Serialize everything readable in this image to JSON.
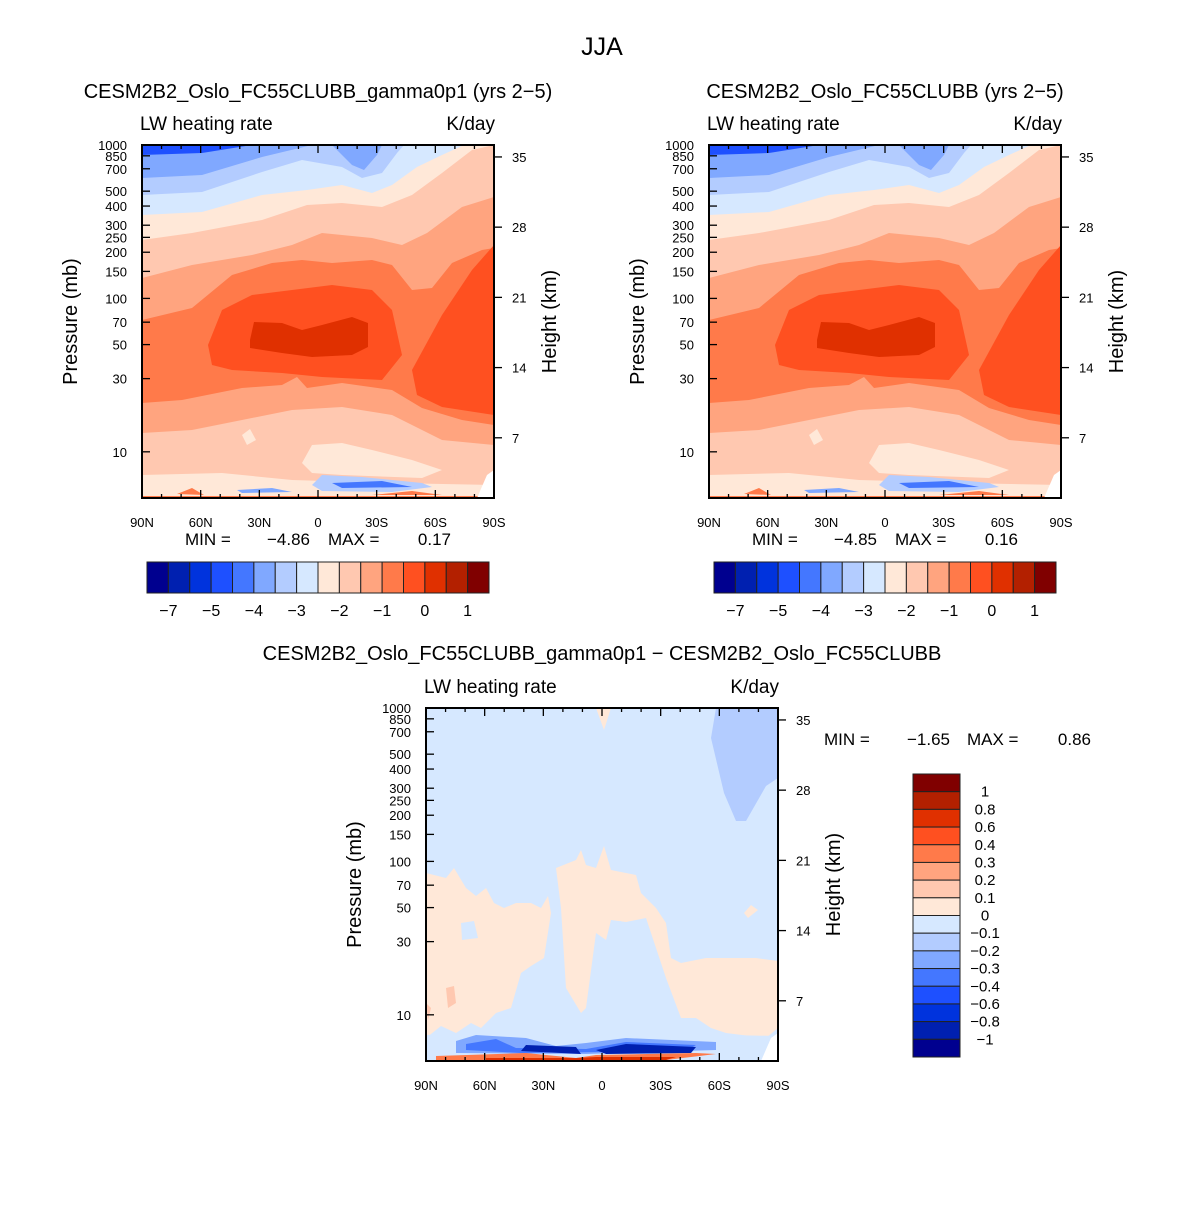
{
  "figure_title": "JJA",
  "chart_data": [
    {
      "type": "heatmap",
      "subtype": "filled-contour",
      "title": "CESM2B2_Oslo_FC55CLUBB_gamma0p1 (yrs 2−5)",
      "left_string": "LW heating rate",
      "right_string": "K/day",
      "ylabel": "Pressure (mb)",
      "y2label": "Height (km)",
      "xticks": [
        "90N",
        "60N",
        "30N",
        "0",
        "30S",
        "60S",
        "90S"
      ],
      "yticks": [
        "10",
        "30",
        "50",
        "70",
        "100",
        "150",
        "200",
        "250",
        "300",
        "400",
        "500",
        "700",
        "850",
        "1000"
      ],
      "y2ticks": [
        "35",
        "28",
        "21",
        "14",
        "7"
      ],
      "ylim": [
        1000,
        5
      ],
      "min_label": "MIN =",
      "min": "−4.86",
      "max_label": "MAX =",
      "max": "0.17",
      "colorbar_labels": [
        "−7",
        "−5",
        "−4",
        "−3",
        "−2",
        "−1",
        "0",
        "1"
      ]
    },
    {
      "type": "heatmap",
      "subtype": "filled-contour",
      "title": "CESM2B2_Oslo_FC55CLUBB (yrs 2−5)",
      "left_string": "LW heating rate",
      "right_string": "K/day",
      "ylabel": "Pressure (mb)",
      "y2label": "Height (km)",
      "xticks": [
        "90N",
        "60N",
        "30N",
        "0",
        "30S",
        "60S",
        "90S"
      ],
      "yticks": [
        "10",
        "30",
        "50",
        "70",
        "100",
        "150",
        "200",
        "250",
        "300",
        "400",
        "500",
        "700",
        "850",
        "1000"
      ],
      "y2ticks": [
        "35",
        "28",
        "21",
        "14",
        "7"
      ],
      "ylim": [
        1000,
        5
      ],
      "min_label": "MIN =",
      "min": "−4.85",
      "max_label": "MAX =",
      "max": "0.16",
      "colorbar_labels": [
        "−7",
        "−5",
        "−4",
        "−3",
        "−2",
        "−1",
        "0",
        "1"
      ]
    },
    {
      "type": "heatmap",
      "subtype": "filled-contour",
      "title": "CESM2B2_Oslo_FC55CLUBB_gamma0p1 − CESM2B2_Oslo_FC55CLUBB",
      "left_string": "LW heating rate",
      "right_string": "K/day",
      "ylabel": "Pressure (mb)",
      "y2label": "Height (km)",
      "xticks": [
        "90N",
        "60N",
        "30N",
        "0",
        "30S",
        "60S",
        "90S"
      ],
      "yticks": [
        "10",
        "30",
        "50",
        "70",
        "100",
        "150",
        "200",
        "250",
        "300",
        "400",
        "500",
        "700",
        "850",
        "1000"
      ],
      "y2ticks": [
        "35",
        "28",
        "21",
        "14",
        "7"
      ],
      "ylim": [
        1000,
        5
      ],
      "min_label": "MIN =",
      "min": "−1.65",
      "max_label": "MAX =",
      "max": "0.86",
      "colorbar_labels": [
        "1",
        "0.8",
        "0.6",
        "0.4",
        "0.3",
        "0.2",
        "0.1",
        "0",
        "−0.1",
        "−0.2",
        "−0.3",
        "−0.4",
        "−0.6",
        "−0.8",
        "−1"
      ]
    }
  ],
  "colors": [
    "#00008f",
    "#0020b0",
    "#0033dd",
    "#1e50ff",
    "#4477ff",
    "#80a8ff",
    "#b3ccff",
    "#d6e8ff",
    "#ffe8d8",
    "#ffc8b0",
    "#ffa47f",
    "#ff7a4a",
    "#ff5020",
    "#e03000",
    "#b32000",
    "#800000"
  ]
}
